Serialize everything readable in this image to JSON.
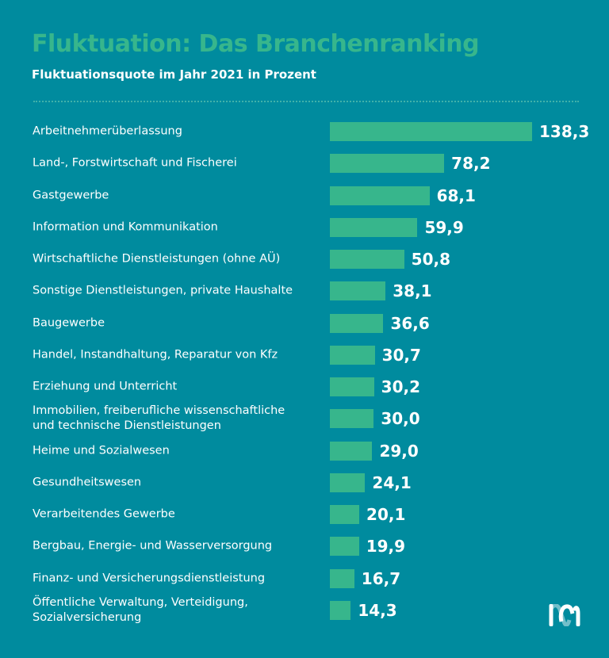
{
  "chart_data": {
    "type": "bar",
    "orientation": "horizontal",
    "title": "Fluktuation: Das Branchenranking",
    "subtitle": "Fluktuationsquote im Jahr 2021 in Prozent",
    "categories": [
      "Arbeitnehmerüberlassung",
      "Land-, Forstwirtschaft und Fischerei",
      "Gastgewerbe",
      "Information und Kommunikation",
      "Wirtschaftliche Dienstleistungen (ohne AÜ)",
      "Sonstige Dienstleistungen, private Haushalte",
      "Baugewerbe",
      "Handel, Instandhaltung, Reparatur von Kfz",
      "Erziehung und Unterricht",
      "Immobilien, freiberufliche wissenschaftliche\nund technische Dienstleistungen",
      "Heime und Sozialwesen",
      "Gesundheitswesen",
      "Verarbeitendes Gewerbe",
      "Bergbau, Energie- und Wasserversorgung",
      "Finanz- und Versicherungsdienstleistung",
      "Öffentliche Verwaltung, Verteidigung,\nSozialversicherung"
    ],
    "values": [
      138.3,
      78.2,
      68.1,
      59.9,
      50.8,
      38.1,
      36.6,
      30.7,
      30.2,
      30.0,
      29.0,
      24.1,
      20.1,
      19.9,
      16.7,
      14.3
    ],
    "value_labels": [
      "138,3",
      "78,2",
      "68,1",
      "59,9",
      "50,8",
      "38,1",
      "36,6",
      "30,7",
      "30,2",
      "30,0",
      "29,0",
      "24,1",
      "20,1",
      "19,9",
      "16,7",
      "14,3"
    ],
    "xlim": [
      0,
      138.3
    ],
    "grid": false,
    "legend": "none",
    "colors": {
      "background": "#008b9e",
      "bar": "#37b68c",
      "title": "#37b68c",
      "text": "#ffffff"
    }
  },
  "logo": {
    "icon": "m-logo-icon"
  }
}
